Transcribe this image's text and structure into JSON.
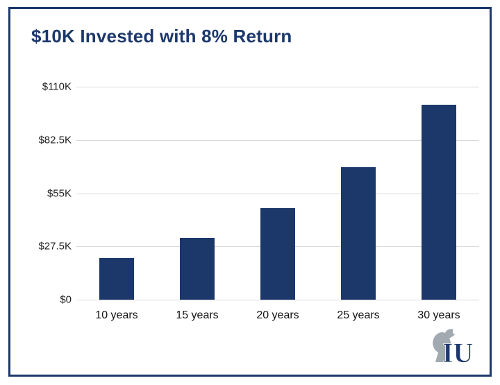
{
  "chart_data": {
    "type": "bar",
    "title": "$10K Invested with 8% Return",
    "categories": [
      "10 years",
      "15 years",
      "20 years",
      "25 years",
      "30 years"
    ],
    "values": [
      21600,
      32000,
      47200,
      68500,
      100600
    ],
    "xlabel": "",
    "ylabel": "",
    "ylim": [
      0,
      110000
    ],
    "y_ticks": [
      {
        "label": "$110K",
        "value": 110000
      },
      {
        "label": "$82.5K",
        "value": 82500
      },
      {
        "label": "$55K",
        "value": 55000
      },
      {
        "label": "$27.5K",
        "value": 27500
      },
      {
        "label": "$0",
        "value": 0
      }
    ],
    "grid": true,
    "legend_position": "none",
    "bar_color": "#1c386b",
    "grid_color": "#d9d9d9",
    "border_color": "#1c386b"
  },
  "brand": {
    "logo_text": "IU"
  }
}
